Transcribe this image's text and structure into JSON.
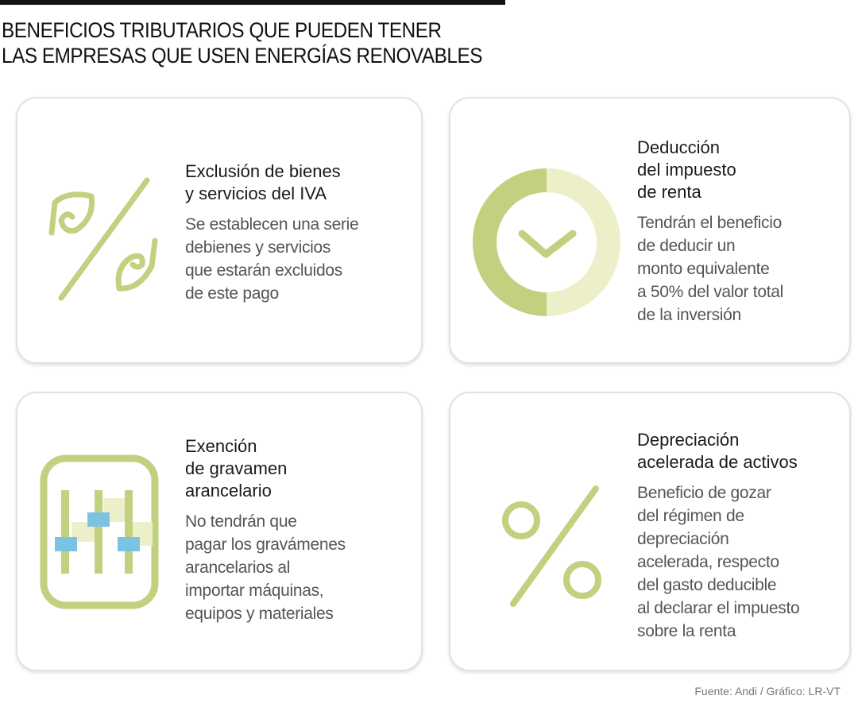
{
  "title": {
    "line1": "BENEFICIOS TRIBUTARIOS QUE PUEDEN TENER",
    "line2": "LAS EMPRESAS QUE USEN ENERGÍAS RENOVABLES"
  },
  "cards": [
    {
      "icon": "leaf-percent-icon",
      "heading": [
        "Exclusión de bienes",
        "y servicios del IVA"
      ],
      "body": [
        "Se establecen una serie",
        "debienes y servicios",
        "que estarán excluidos",
        "de este pago"
      ]
    },
    {
      "icon": "half-donut-chevron-icon",
      "heading": [
        "Deducción",
        "del impuesto",
        "de renta"
      ],
      "body": [
        "Tendrán el beneficio",
        "de deducir un",
        "monto equivalente",
        "a 50% del valor total",
        "de la inversión"
      ]
    },
    {
      "icon": "sliders-icon",
      "heading": [
        "Exención",
        "de gravamen",
        "arancelario"
      ],
      "body": [
        "No tendrán que",
        "pagar los gravámenes",
        "arancelarios al",
        "importar máquinas,",
        "equipos y materiales"
      ]
    },
    {
      "icon": "percent-icon",
      "heading": [
        "Depreciación",
        "acelerada de activos"
      ],
      "body": [
        "Beneficio de gozar",
        "del régimen de",
        "depreciación",
        "acelerada, respecto",
        "del gasto deducible",
        "al declarar el impuesto",
        "sobre la renta"
      ]
    }
  ],
  "source": "Fuente: Andi / Gráfico: LR-VT",
  "colors": {
    "green": "#c2d17f",
    "light_green": "#ecefc8",
    "blue": "#7cc3e3"
  }
}
